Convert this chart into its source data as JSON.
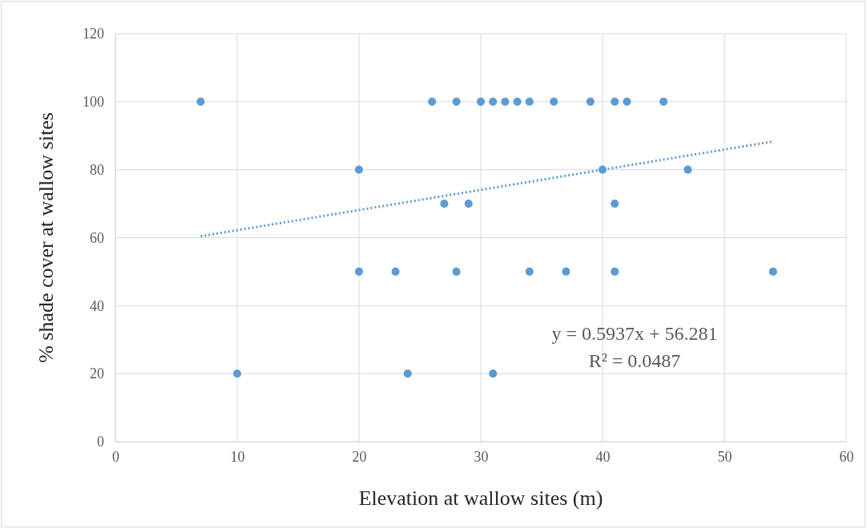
{
  "chart_data": {
    "type": "scatter",
    "xlabel": "Elevation at wallow sites (m)",
    "ylabel": "% shade cover at wallow sites",
    "xlim": [
      0,
      60
    ],
    "xticks": [
      0,
      10,
      20,
      30,
      40,
      50,
      60
    ],
    "ylim": [
      0,
      120
    ],
    "yticks": [
      0,
      20,
      40,
      60,
      80,
      100,
      120
    ],
    "grid": true,
    "marker": "circle",
    "series": [
      {
        "color": "#5b9bd5",
        "x": [
          7,
          26,
          28,
          30,
          31,
          32,
          33,
          34,
          36,
          39,
          41,
          42,
          45,
          20,
          40,
          47,
          27,
          29,
          41,
          20,
          23,
          28,
          34,
          37,
          41,
          54,
          10,
          24,
          31
        ],
        "values": [
          100,
          100,
          100,
          100,
          100,
          100,
          100,
          100,
          100,
          100,
          100,
          100,
          100,
          80,
          80,
          80,
          70,
          70,
          70,
          50,
          50,
          50,
          50,
          50,
          50,
          50,
          20,
          20,
          20
        ]
      },
      {
        "type": "line",
        "color": "#5b9bd5",
        "line_style": "dotted",
        "marker": "none",
        "x": [
          7,
          54
        ],
        "values": [
          60.4,
          88.3
        ]
      }
    ],
    "annotations": [
      "y = 0.5937x + 56.281",
      "R² = 0.0487"
    ]
  }
}
